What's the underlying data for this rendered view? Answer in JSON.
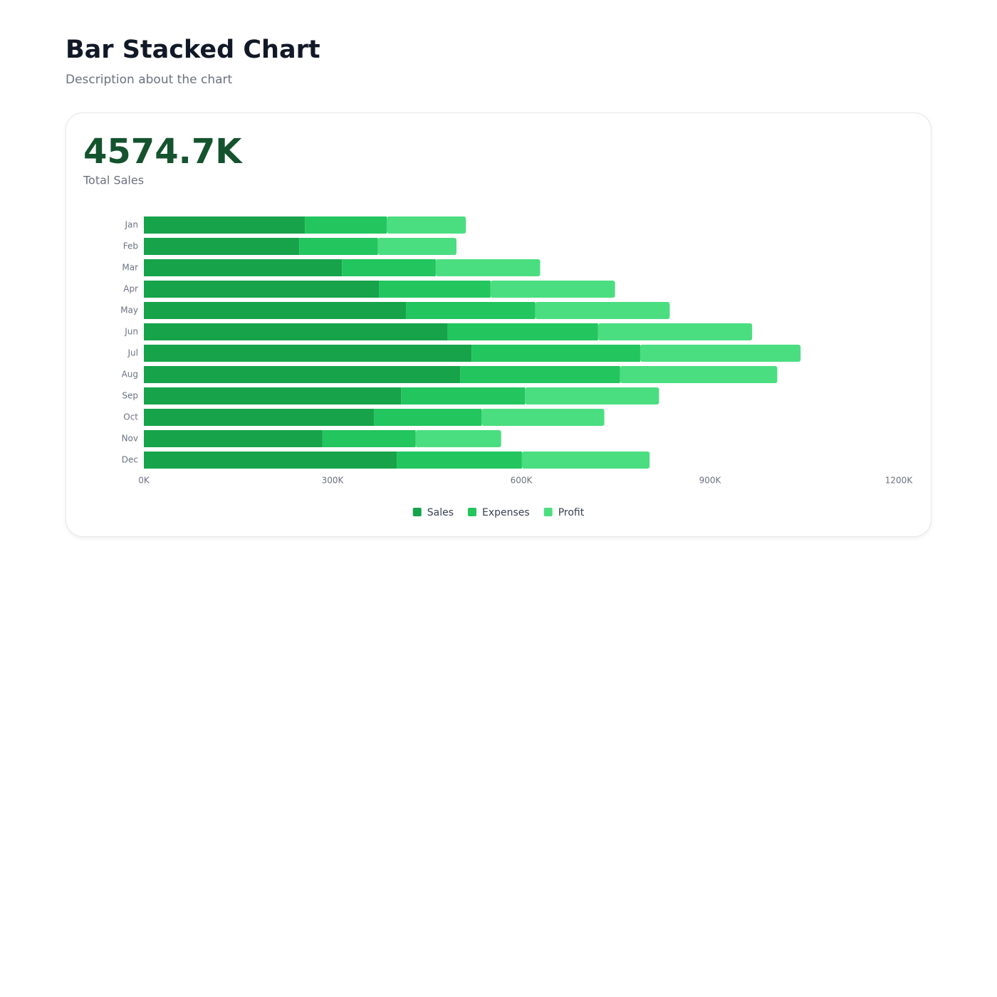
{
  "header": {
    "title": "Bar Stacked Chart",
    "subtitle": "Description about the chart"
  },
  "kpi": {
    "value": "4574.7K",
    "label": "Total Sales"
  },
  "chart_data": {
    "type": "stacked-bar-horizontal",
    "categories": [
      "Jan",
      "Feb",
      "Mar",
      "Apr",
      "May",
      "Jun",
      "Jul",
      "Aug",
      "Sep",
      "Oct",
      "Nov",
      "Dec"
    ],
    "series": [
      {
        "name": "Sales",
        "color": "#16a34a",
        "values": [
          256,
          247,
          315,
          374,
          417,
          483,
          521,
          503,
          409,
          366,
          284,
          402
        ]
      },
      {
        "name": "Expenses",
        "color": "#22c55e",
        "values": [
          130,
          125,
          149,
          177,
          205,
          239,
          268,
          254,
          197,
          171,
          148,
          199
        ]
      },
      {
        "name": "Profit",
        "color": "#4ade80",
        "values": [
          126,
          125,
          166,
          198,
          214,
          245,
          255,
          250,
          213,
          195,
          136,
          203
        ]
      }
    ],
    "xlim": [
      0,
      1200
    ],
    "xticks": [
      {
        "value": 0,
        "label": "0K"
      },
      {
        "value": 300,
        "label": "300K"
      },
      {
        "value": 600,
        "label": "600K"
      },
      {
        "value": 900,
        "label": "900K"
      },
      {
        "value": 1200,
        "label": "1200K"
      }
    ],
    "legend": "bottom"
  }
}
